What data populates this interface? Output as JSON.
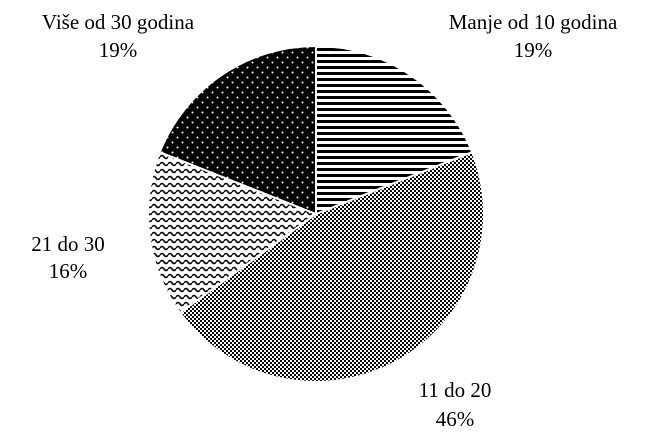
{
  "chart_data": {
    "type": "pie",
    "categories": [
      "Manje od 10 godina",
      "11 do 20",
      "21 do 30",
      "Više od 30 godina"
    ],
    "values": [
      19,
      46,
      16,
      19
    ],
    "value_labels": [
      "19%",
      "46%",
      "16%",
      "19%"
    ]
  }
}
